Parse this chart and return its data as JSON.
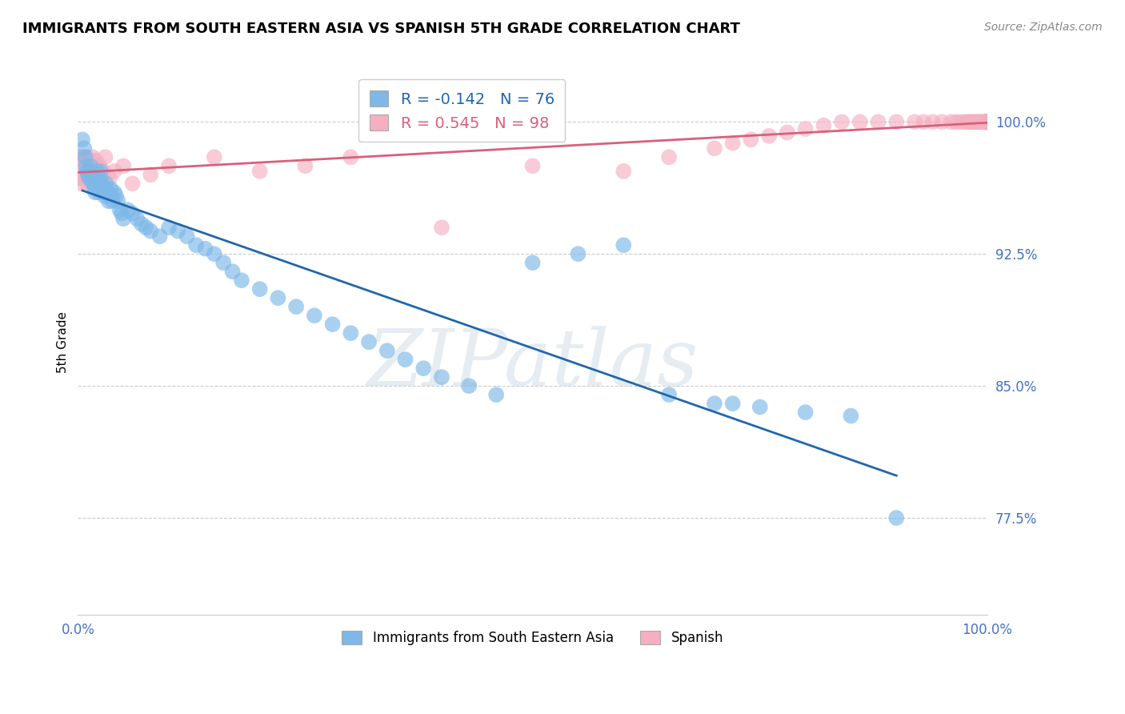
{
  "title": "IMMIGRANTS FROM SOUTH EASTERN ASIA VS SPANISH 5TH GRADE CORRELATION CHART",
  "source": "Source: ZipAtlas.com",
  "ylabel": "5th Grade",
  "xlim": [
    0.0,
    1.0
  ],
  "ylim": [
    0.72,
    1.03
  ],
  "yticks": [
    1.0,
    0.925,
    0.85,
    0.775
  ],
  "ytick_labels": [
    "100.0%",
    "92.5%",
    "85.0%",
    "77.5%"
  ],
  "blue_color": "#7db8e8",
  "pink_color": "#f5afc0",
  "blue_line_color": "#2166ac",
  "pink_line_color": "#d9607a",
  "blue_R": -0.142,
  "blue_N": 76,
  "pink_R": 0.545,
  "pink_N": 98,
  "legend_blue_label": "Immigrants from South Eastern Asia",
  "legend_pink_label": "Spanish",
  "watermark": "ZIPatlas",
  "blue_x": [
    0.005,
    0.007,
    0.008,
    0.009,
    0.01,
    0.011,
    0.012,
    0.013,
    0.014,
    0.015,
    0.016,
    0.017,
    0.018,
    0.019,
    0.02,
    0.021,
    0.022,
    0.023,
    0.024,
    0.025,
    0.026,
    0.027,
    0.028,
    0.029,
    0.03,
    0.031,
    0.033,
    0.034,
    0.035,
    0.036,
    0.038,
    0.04,
    0.042,
    0.044,
    0.046,
    0.048,
    0.05,
    0.055,
    0.06,
    0.065,
    0.07,
    0.075,
    0.08,
    0.09,
    0.1,
    0.11,
    0.12,
    0.13,
    0.14,
    0.15,
    0.16,
    0.17,
    0.18,
    0.2,
    0.22,
    0.24,
    0.26,
    0.28,
    0.3,
    0.32,
    0.34,
    0.36,
    0.38,
    0.4,
    0.43,
    0.46,
    0.5,
    0.55,
    0.6,
    0.65,
    0.7,
    0.72,
    0.75,
    0.8,
    0.85,
    0.9
  ],
  "blue_y": [
    0.99,
    0.985,
    0.98,
    0.975,
    0.972,
    0.97,
    0.968,
    0.972,
    0.975,
    0.97,
    0.968,
    0.965,
    0.963,
    0.96,
    0.968,
    0.972,
    0.965,
    0.96,
    0.968,
    0.972,
    0.965,
    0.963,
    0.96,
    0.958,
    0.962,
    0.965,
    0.96,
    0.955,
    0.958,
    0.962,
    0.955,
    0.96,
    0.958,
    0.955,
    0.95,
    0.948,
    0.945,
    0.95,
    0.948,
    0.945,
    0.942,
    0.94,
    0.938,
    0.935,
    0.94,
    0.938,
    0.935,
    0.93,
    0.928,
    0.925,
    0.92,
    0.915,
    0.91,
    0.905,
    0.9,
    0.895,
    0.89,
    0.885,
    0.88,
    0.875,
    0.87,
    0.865,
    0.86,
    0.855,
    0.85,
    0.845,
    0.92,
    0.925,
    0.93,
    0.845,
    0.84,
    0.84,
    0.838,
    0.835,
    0.833,
    0.775
  ],
  "pink_x": [
    0.001,
    0.002,
    0.002,
    0.003,
    0.003,
    0.004,
    0.004,
    0.005,
    0.005,
    0.006,
    0.006,
    0.007,
    0.007,
    0.008,
    0.008,
    0.009,
    0.009,
    0.01,
    0.01,
    0.011,
    0.011,
    0.012,
    0.012,
    0.013,
    0.014,
    0.015,
    0.015,
    0.016,
    0.017,
    0.018,
    0.019,
    0.02,
    0.022,
    0.024,
    0.026,
    0.028,
    0.03,
    0.035,
    0.04,
    0.05,
    0.06,
    0.08,
    0.1,
    0.15,
    0.2,
    0.25,
    0.3,
    0.4,
    0.5,
    0.6,
    0.65,
    0.7,
    0.72,
    0.74,
    0.76,
    0.78,
    0.8,
    0.82,
    0.84,
    0.86,
    0.88,
    0.9,
    0.92,
    0.93,
    0.94,
    0.95,
    0.96,
    0.965,
    0.97,
    0.975,
    0.978,
    0.98,
    0.982,
    0.984,
    0.986,
    0.988,
    0.99,
    0.992,
    0.994,
    0.996,
    0.997,
    0.998,
    0.9985,
    0.999,
    0.9992,
    0.9994,
    0.9996,
    0.9998,
    1.0,
    1.0,
    1.0,
    1.0,
    1.0,
    1.0,
    1.0,
    1.0,
    1.0,
    1.0
  ],
  "pink_y": [
    0.972,
    0.98,
    0.975,
    0.968,
    0.978,
    0.972,
    0.965,
    0.978,
    0.97,
    0.975,
    0.968,
    0.98,
    0.972,
    0.978,
    0.968,
    0.975,
    0.97,
    0.98,
    0.965,
    0.978,
    0.972,
    0.968,
    0.975,
    0.97,
    0.978,
    0.972,
    0.965,
    0.98,
    0.975,
    0.968,
    0.972,
    0.978,
    0.97,
    0.975,
    0.968,
    0.972,
    0.98,
    0.968,
    0.972,
    0.975,
    0.965,
    0.97,
    0.975,
    0.98,
    0.972,
    0.975,
    0.98,
    0.94,
    0.975,
    0.972,
    0.98,
    0.985,
    0.988,
    0.99,
    0.992,
    0.994,
    0.996,
    0.998,
    1.0,
    1.0,
    1.0,
    1.0,
    1.0,
    1.0,
    1.0,
    1.0,
    1.0,
    1.0,
    1.0,
    1.0,
    1.0,
    1.0,
    1.0,
    1.0,
    1.0,
    1.0,
    1.0,
    1.0,
    1.0,
    1.0,
    1.0,
    1.0,
    1.0,
    1.0,
    1.0,
    1.0,
    1.0,
    1.0,
    1.0,
    1.0,
    1.0,
    1.0,
    1.0,
    1.0,
    1.0,
    1.0,
    1.0,
    1.0
  ]
}
